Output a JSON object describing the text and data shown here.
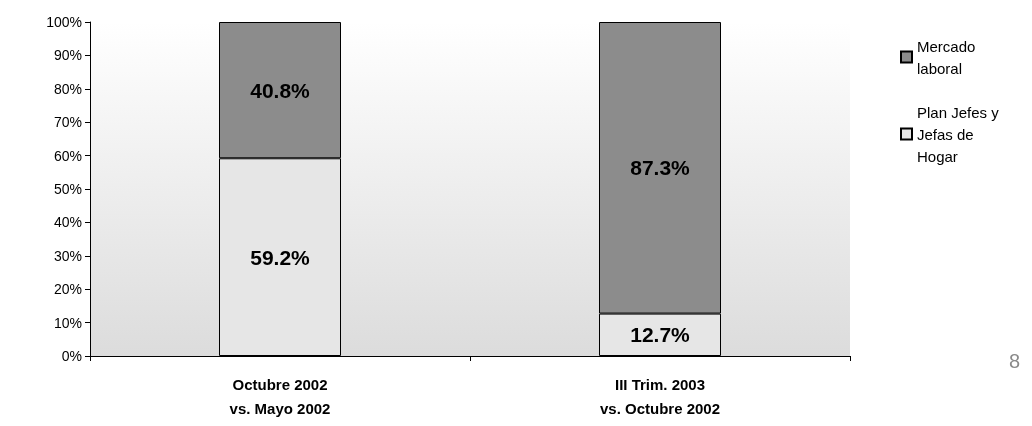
{
  "chart_data": {
    "type": "bar",
    "stacked": true,
    "categories": [
      "Octubre 2002\nvs. Mayo 2002",
      "III Trim. 2003\nvs. Octubre 2002"
    ],
    "series": [
      {
        "name": "Plan Jefes y Jefas de Hogar",
        "color": "#e6e6e6",
        "values": [
          59.2,
          12.7
        ],
        "value_labels": [
          "59.2%",
          "12.7%"
        ]
      },
      {
        "name": "Mercado laboral",
        "color": "#8c8c8c",
        "values": [
          40.8,
          87.3
        ],
        "value_labels": [
          "40.8%",
          "87.3%"
        ]
      }
    ],
    "ylim": [
      0,
      100
    ],
    "yticks": [
      {
        "value": 0,
        "label": "0%"
      },
      {
        "value": 10,
        "label": "10%"
      },
      {
        "value": 20,
        "label": "20%"
      },
      {
        "value": 30,
        "label": "30%"
      },
      {
        "value": 40,
        "label": "40%"
      },
      {
        "value": 50,
        "label": "50%"
      },
      {
        "value": 60,
        "label": "60%"
      },
      {
        "value": 70,
        "label": "70%"
      },
      {
        "value": 80,
        "label": "80%"
      },
      {
        "value": 90,
        "label": "90%"
      },
      {
        "value": 100,
        "label": "100%"
      }
    ],
    "grid": false,
    "legend": "right",
    "annotations": [
      "8"
    ]
  }
}
